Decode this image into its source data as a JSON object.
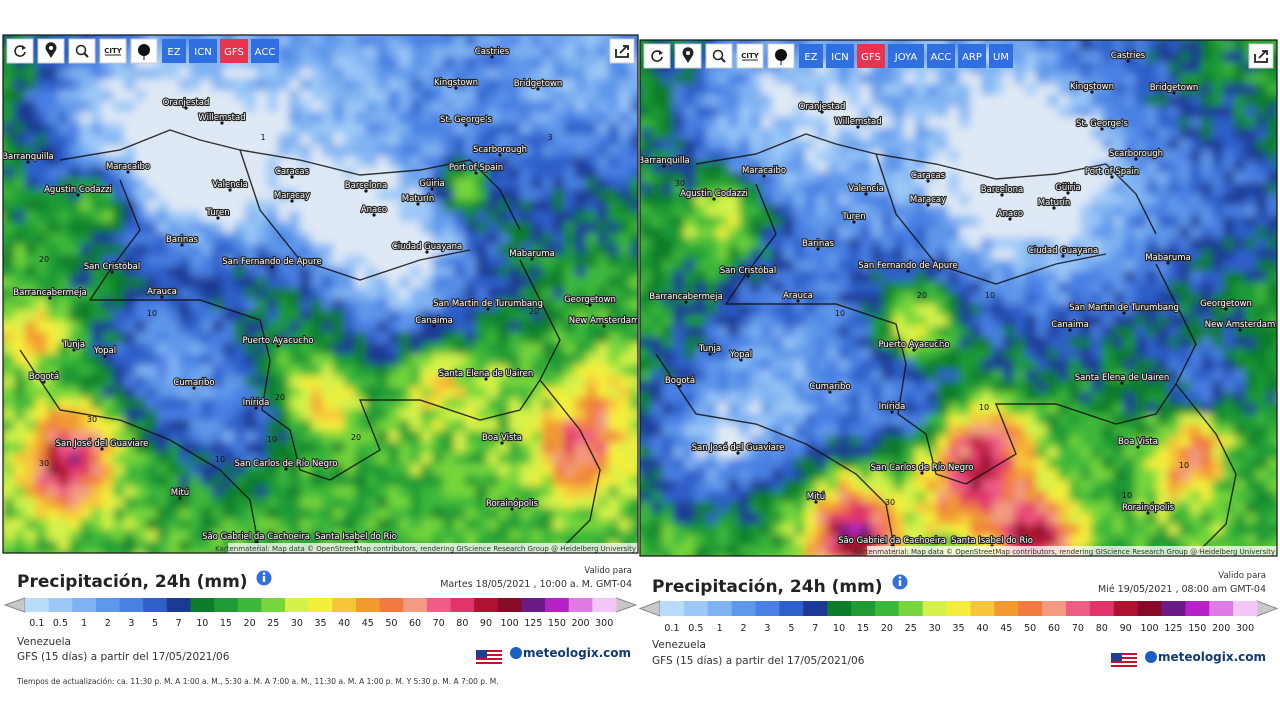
{
  "panels": [
    {
      "city_toggle": "CITY",
      "models": [
        {
          "label": "EZ"
        },
        {
          "label": "ICN"
        },
        {
          "label": "GFS",
          "active": true
        },
        {
          "label": "ACC"
        }
      ],
      "places": [
        "Castries",
        "Kingstown",
        "Bridgetown",
        "Oranjestad",
        "Willemstad",
        "St. George's",
        "Barranquilla",
        "Maracaibo",
        "Scarborough",
        "Port of Spain",
        "Agustin Codazzi",
        "Caracas",
        "Valencia",
        "Barcelona",
        "Güiria",
        "Maracay",
        "Maturín",
        "Anaco",
        "Turen",
        "Barinas",
        "Ciudad Guayana",
        "San Fernando de Apure",
        "Mabaruma",
        "San Cristóbal",
        "Barrancabermeja",
        "Arauca",
        "San Martin de Turumbang",
        "Georgetown",
        "New Amsterdam",
        "Canaima",
        "Puerto Ayacucho",
        "Tunja",
        "Yopal",
        "Santa Elena de Uairen",
        "Cumaribo",
        "Bogotá",
        "Inírida",
        "San José del Guaviare",
        "Boa Vista",
        "San Carlos de Río Negro",
        "Mitú",
        "Rorainópolis",
        "São Gabriel da Cachoeira",
        "Santa Isabel do Rio"
      ],
      "contour_labels": [
        "1",
        "3",
        "20",
        "10",
        "30",
        "20",
        "10",
        "20",
        "20",
        "30",
        "10"
      ],
      "attribution": "Kartenmaterial: Map data © OpenStreetMap contributors, rendering GIScience Research Group @ Heidelberg University",
      "title": "Precipitación, 24h (mm)",
      "valid_label": "Valido para",
      "valid_date": "Martes 18/05/2021 , 10:00 a. M. GMT-04",
      "region": "Venezuela",
      "model_info": "GFS (15 días) a partir del 17/05/2021/06",
      "brand": "meteologix.com",
      "update_times": "Tiempos de actualización: ca. 11:30 p. M. A 1:00 a. M., 5:30 a. M. A 7:00 a. M., 11:30 a. M. A 1:00 p. M. Y 5:30 p. M. A 7:00 p. M."
    },
    {
      "city_toggle": "CITY",
      "models": [
        {
          "label": "EZ"
        },
        {
          "label": "ICN"
        },
        {
          "label": "GFS",
          "active": true
        },
        {
          "label": "JOYA"
        },
        {
          "label": "ACC"
        },
        {
          "label": "ARP"
        },
        {
          "label": "UM"
        }
      ],
      "places": [
        "Castries",
        "Kingstown",
        "Bridgetown",
        "Oranjestad",
        "Willemstad",
        "St. George's",
        "Barranquilla",
        "Maracaibo",
        "Scarborough",
        "Port of Spain",
        "Agustin Codazzi",
        "Caracas",
        "Valencia",
        "Barcelona",
        "Güiria",
        "Maracay",
        "Maturín",
        "Anaco",
        "Turen",
        "Barinas",
        "Ciudad Guayana",
        "San Fernando de Apure",
        "Mabaruma",
        "San Cristóbal",
        "Barrancabermeja",
        "Arauca",
        "San Martin de Turumbang",
        "Georgetown",
        "New Amsterdam",
        "Canaima",
        "Puerto Ayacucho",
        "Tunja",
        "Yopal",
        "Santa Elena de Uairen",
        "Cumaribo",
        "Bogotá",
        "Inírida",
        "San José del Guaviare",
        "Boa Vista",
        "San Carlos de Río Negro",
        "Mitú",
        "Rorainópolis",
        "São Gabriel da Cachoeira",
        "Santa Isabel do Rio"
      ],
      "contour_labels": [
        "30",
        "20",
        "10",
        "10",
        "20",
        "10",
        "30",
        "10",
        "10"
      ],
      "attribution": "Kartenmaterial: Map data © OpenStreetMap contributors, rendering GIScience Research Group @ Heidelberg University",
      "title": "Precipitación, 24h (mm)",
      "valid_label": "Valido para",
      "valid_date": "Mié 19/05/2021 , 08:00 am GMT-04",
      "region": "Venezuela",
      "model_info": "GFS (15 días) a partir del 17/05/2021/06",
      "brand": "meteologix.com"
    }
  ],
  "legend_scale": [
    {
      "label": "0.1",
      "color": "#b9dcfb"
    },
    {
      "label": "0.5",
      "color": "#9cc8f7"
    },
    {
      "label": "1",
      "color": "#7fb2f2"
    },
    {
      "label": "2",
      "color": "#5f97ea"
    },
    {
      "label": "3",
      "color": "#4a80e3"
    },
    {
      "label": "5",
      "color": "#2f5fc9"
    },
    {
      "label": "7",
      "color": "#1b3a94"
    },
    {
      "label": "10",
      "color": "#0d7d2a"
    },
    {
      "label": "15",
      "color": "#1f9a34"
    },
    {
      "label": "20",
      "color": "#3cb83b"
    },
    {
      "label": "25",
      "color": "#76d63b"
    },
    {
      "label": "30",
      "color": "#d6f24a"
    },
    {
      "label": "35",
      "color": "#f5ee3a"
    },
    {
      "label": "40",
      "color": "#f6c63a"
    },
    {
      "label": "45",
      "color": "#f29a30"
    },
    {
      "label": "50",
      "color": "#f07a40"
    },
    {
      "label": "60",
      "color": "#f39a82"
    },
    {
      "label": "70",
      "color": "#ef5c85"
    },
    {
      "label": "80",
      "color": "#e0346b"
    },
    {
      "label": "90",
      "color": "#b0122f"
    },
    {
      "label": "100",
      "color": "#860a2a"
    },
    {
      "label": "125",
      "color": "#6b1a86"
    },
    {
      "label": "150",
      "color": "#b622c6"
    },
    {
      "label": "200",
      "color": "#e07be6"
    },
    {
      "label": "300",
      "color": "#f3c7f5"
    }
  ]
}
